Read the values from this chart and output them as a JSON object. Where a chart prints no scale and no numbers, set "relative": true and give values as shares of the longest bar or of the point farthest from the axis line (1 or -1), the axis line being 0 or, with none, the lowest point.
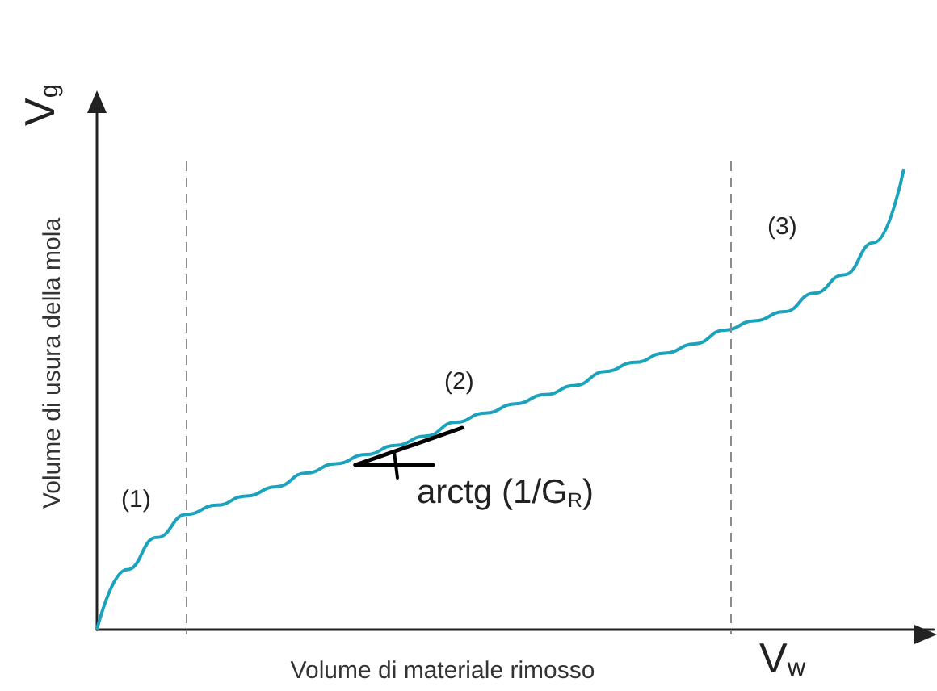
{
  "chart_data": {
    "type": "line",
    "relative": true,
    "xlabel": "Volume di materiale rimosso",
    "ylabel": "Volume di usura della mola",
    "categories": [
      null,
      null,
      null,
      null,
      null,
      null,
      null,
      null,
      null,
      null,
      null,
      null,
      null,
      null,
      null,
      null,
      null,
      null,
      null,
      null,
      null,
      null,
      null,
      null,
      null,
      null,
      null,
      null
    ],
    "series": [
      {
        "color": "#1ba3bd",
        "values": [
          0,
          0.13,
          0.2,
          0.25,
          0.27,
          0.29,
          0.31,
          0.34,
          0.36,
          0.38,
          0.4,
          0.42,
          0.45,
          0.47,
          0.49,
          0.51,
          0.53,
          0.56,
          0.58,
          0.6,
          0.62,
          0.65,
          0.67,
          0.69,
          0.73,
          0.77,
          0.84,
          1
        ]
      }
    ],
    "annotations": [
      "(1)",
      "(2)",
      "(3)",
      "arctg (1/G$_{R}$)",
      "V$_{g}$",
      "V$_{w}$"
    ],
    "tick_labels": false,
    "marker": "none",
    "line_style": "solid"
  }
}
